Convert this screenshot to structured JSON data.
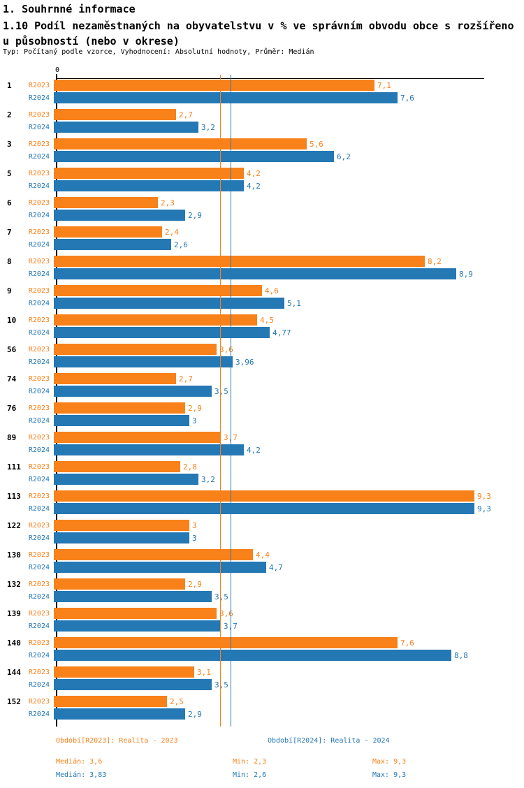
{
  "header": {
    "title": "1. Souhrnné informace",
    "subtitle": "1.10 Podíl nezaměstnaných na obyvatelstvu v % ve správním obvodu obce s rozšířenou působností (nebo v okrese)",
    "meta": "Typ: Počítaný podle vzorce, Vyhodnocení: Absolutní hodnoty, Průměr: Medián"
  },
  "chart_data": {
    "type": "bar",
    "orientation": "horizontal",
    "title": "1.10 Podíl nezaměstnaných na obyvatelstvu v % ve správním obvodu obce s rozšířenou působností (nebo v okrese)",
    "xlabel": "",
    "ylabel": "",
    "xlim": [
      0,
      9.5
    ],
    "grid": false,
    "legend_position": "bottom",
    "axis": {
      "origin_label": "0"
    },
    "categories": [
      "1",
      "2",
      "3",
      "5",
      "6",
      "7",
      "8",
      "9",
      "10",
      "56",
      "74",
      "76",
      "89",
      "111",
      "113",
      "122",
      "130",
      "132",
      "139",
      "140",
      "144",
      "152"
    ],
    "series": [
      {
        "id": "R2023",
        "label": "R2023",
        "legend": "Období[R2023]: Realita - 2023",
        "color": "#f8811a",
        "median": 3.6,
        "values": [
          7.1,
          2.7,
          5.6,
          4.2,
          2.3,
          2.4,
          8.2,
          4.6,
          4.5,
          3.6,
          2.7,
          2.9,
          3.7,
          2.8,
          9.3,
          3,
          4.4,
          2.9,
          3.6,
          7.6,
          3.1,
          2.5
        ],
        "value_labels": [
          "7,1",
          "2,7",
          "5,6",
          "4,2",
          "2,3",
          "2,4",
          "8,2",
          "4,6",
          "4,5",
          "3,6",
          "2,7",
          "2,9",
          "3,7",
          "2,8",
          "9,3",
          "3",
          "4,4",
          "2,9",
          "3,6",
          "7,6",
          "3,1",
          "2,5"
        ],
        "stats": {
          "median": "Medián: 3,6",
          "min": "Min: 2,3",
          "max": "Max: 9,3"
        }
      },
      {
        "id": "R2024",
        "label": "R2024",
        "legend": "Období[R2024]: Realita - 2024",
        "color": "#2478b4",
        "median": 3.83,
        "values": [
          7.6,
          3.2,
          6.2,
          4.2,
          2.9,
          2.6,
          8.9,
          5.1,
          4.77,
          3.96,
          3.5,
          3,
          4.2,
          3.2,
          9.3,
          3,
          4.7,
          3.5,
          3.7,
          8.8,
          3.5,
          2.9
        ],
        "value_labels": [
          "7,6",
          "3,2",
          "6,2",
          "4,2",
          "2,9",
          "2,6",
          "8,9",
          "5,1",
          "4,77",
          "3,96",
          "3,5",
          "3",
          "4,2",
          "3,2",
          "9,3",
          "3",
          "4,7",
          "3,5",
          "3,7",
          "8,8",
          "3,5",
          "2,9"
        ],
        "stats": {
          "median": "Medián: 3,83",
          "min": "Min: 2,6",
          "max": "Max: 9,3"
        }
      }
    ]
  }
}
